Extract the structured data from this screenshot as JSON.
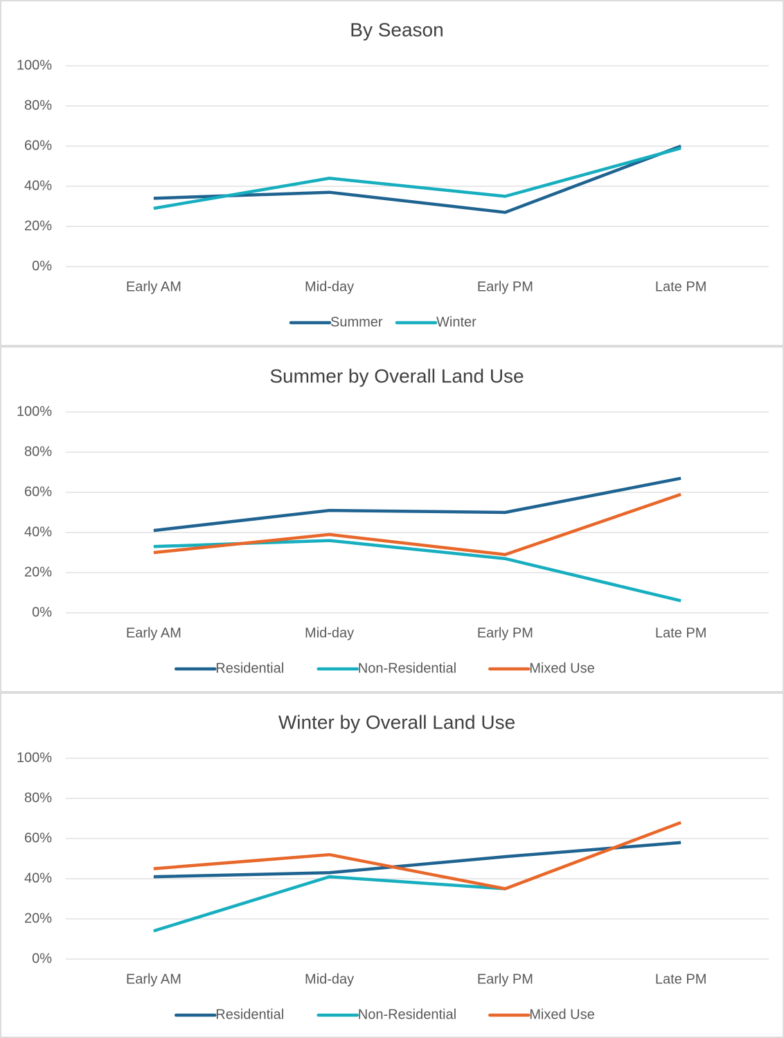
{
  "chart_data": [
    {
      "type": "line",
      "title": "By Season",
      "categories": [
        "Early AM",
        "Mid-day",
        "Early PM",
        "Late PM"
      ],
      "series": [
        {
          "name": "Summer",
          "color": "#1f6391",
          "values": [
            34,
            37,
            27,
            60
          ]
        },
        {
          "name": "Winter",
          "color": "#17aebf",
          "values": [
            29,
            44,
            35,
            59
          ]
        }
      ],
      "ylim": [
        0,
        100
      ],
      "yticks": [
        {
          "value": 0,
          "label": "0%"
        },
        {
          "value": 20,
          "label": "20%"
        },
        {
          "value": 40,
          "label": "40%"
        },
        {
          "value": 60,
          "label": "60%"
        },
        {
          "value": 80,
          "label": "80%"
        },
        {
          "value": 100,
          "label": "100%"
        }
      ],
      "grid": true,
      "legend": "bottom"
    },
    {
      "type": "line",
      "title": "Summer by Overall Land Use",
      "categories": [
        "Early AM",
        "Mid-day",
        "Early PM",
        "Late PM"
      ],
      "series": [
        {
          "name": "Residential",
          "color": "#1f6391",
          "values": [
            41,
            51,
            50,
            67
          ]
        },
        {
          "name": "Non-Residential",
          "color": "#17aebf",
          "values": [
            33,
            36,
            27,
            6
          ]
        },
        {
          "name": "Mixed Use",
          "color": "#e8672a",
          "values": [
            30,
            39,
            29,
            59
          ]
        }
      ],
      "ylim": [
        0,
        100
      ],
      "yticks": [
        {
          "value": 0,
          "label": "0%"
        },
        {
          "value": 20,
          "label": "20%"
        },
        {
          "value": 40,
          "label": "40%"
        },
        {
          "value": 60,
          "label": "60%"
        },
        {
          "value": 80,
          "label": "80%"
        },
        {
          "value": 100,
          "label": "100%"
        }
      ],
      "grid": true,
      "legend": "bottom"
    },
    {
      "type": "line",
      "title": "Winter by Overall Land Use",
      "categories": [
        "Early AM",
        "Mid-day",
        "Early PM",
        "Late PM"
      ],
      "series": [
        {
          "name": "Residential",
          "color": "#1f6391",
          "values": [
            41,
            43,
            51,
            58
          ]
        },
        {
          "name": "Non-Residential",
          "color": "#17aebf",
          "values": [
            14,
            41,
            35,
            null
          ]
        },
        {
          "name": "Mixed Use",
          "color": "#e8672a",
          "values": [
            45,
            52,
            35,
            68
          ]
        }
      ],
      "ylim": [
        0,
        100
      ],
      "yticks": [
        {
          "value": 0,
          "label": "0%"
        },
        {
          "value": 20,
          "label": "20%"
        },
        {
          "value": 40,
          "label": "40%"
        },
        {
          "value": 60,
          "label": "60%"
        },
        {
          "value": 80,
          "label": "80%"
        },
        {
          "value": 100,
          "label": "100%"
        }
      ],
      "grid": true,
      "legend": "bottom"
    }
  ]
}
